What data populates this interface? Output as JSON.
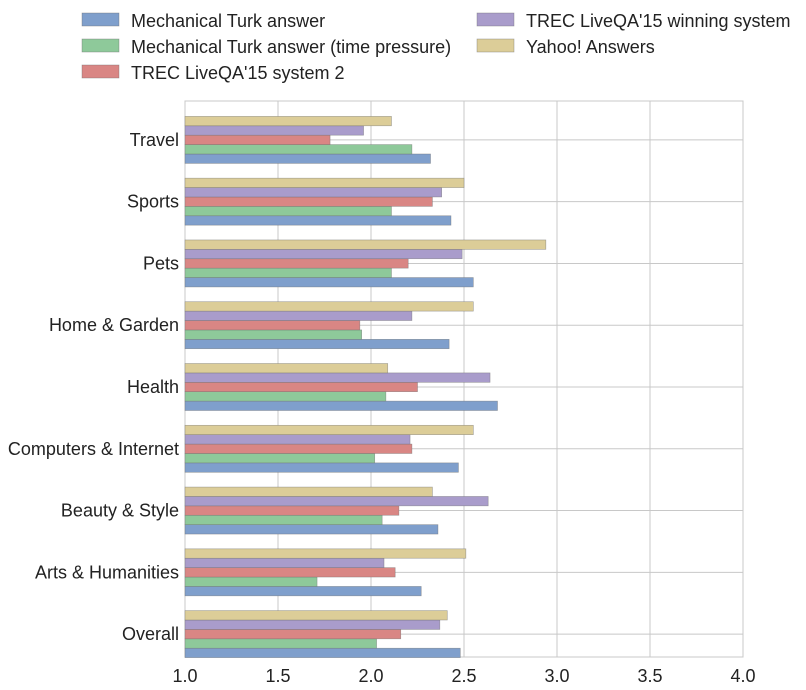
{
  "chart_data": {
    "type": "bar",
    "orientation": "horizontal",
    "title": "",
    "xlabel": "",
    "ylabel": "",
    "xlim": [
      1.0,
      4.0
    ],
    "x_ticks": [
      "1.0",
      "1.5",
      "2.0",
      "2.5",
      "3.0",
      "3.5",
      "4.0"
    ],
    "grid": true,
    "legend_placement": "top, outside, two columns",
    "categories": [
      "Travel",
      "Sports",
      "Pets",
      "Home & Garden",
      "Health",
      "Computers & Internet",
      "Beauty & Style",
      "Arts & Humanities",
      "Overall"
    ],
    "series": [
      {
        "name": "Mechanical Turk answer",
        "color": "#7f9fcc",
        "values": [
          2.32,
          2.43,
          2.55,
          2.42,
          2.68,
          2.47,
          2.36,
          2.27,
          2.48
        ]
      },
      {
        "name": "Mechanical Turk answer (time pressure)",
        "color": "#8ec99a",
        "values": [
          2.22,
          2.11,
          2.11,
          1.95,
          2.08,
          2.02,
          2.06,
          1.71,
          2.03
        ]
      },
      {
        "name": "TREC LiveQA'15 system 2",
        "color": "#d98684",
        "values": [
          1.78,
          2.33,
          2.2,
          1.94,
          2.25,
          2.22,
          2.15,
          2.13,
          2.16
        ]
      },
      {
        "name": "TREC LiveQA'15 winning system",
        "color": "#a99ccb",
        "values": [
          1.96,
          2.38,
          2.49,
          2.22,
          2.64,
          2.21,
          2.63,
          2.07,
          2.37
        ]
      },
      {
        "name": "Yahoo! Answers",
        "color": "#dccd98",
        "values": [
          2.11,
          2.5,
          2.94,
          2.55,
          2.09,
          2.55,
          2.33,
          2.51,
          2.41
        ]
      }
    ]
  }
}
